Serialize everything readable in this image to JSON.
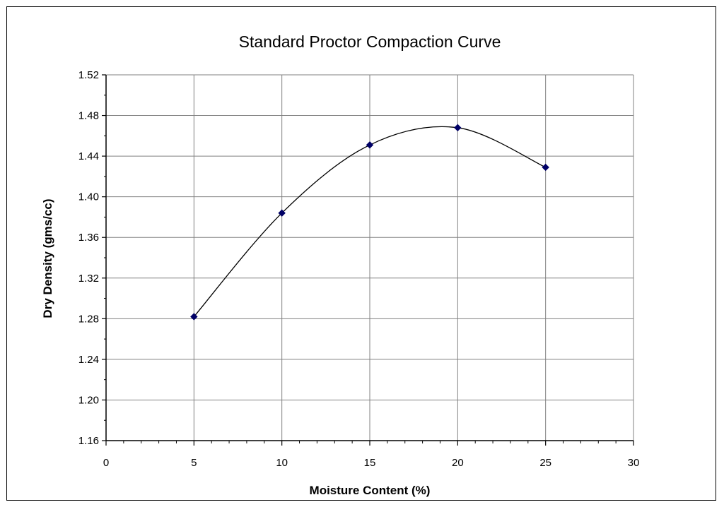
{
  "chart_data": {
    "type": "scatter",
    "title": "Standard Proctor Compaction Curve",
    "xlabel": "Moisture Content (%)",
    "ylabel": "Dry Density (gms/cc)",
    "xlim": [
      0,
      30
    ],
    "ylim": [
      1.16,
      1.52
    ],
    "x_ticks": [
      "0",
      "5",
      "10",
      "15",
      "20",
      "25",
      "30"
    ],
    "y_ticks": [
      "1.16",
      "1.20",
      "1.24",
      "1.28",
      "1.32",
      "1.36",
      "1.40",
      "1.44",
      "1.48",
      "1.52"
    ],
    "grid": true,
    "trendline": "polynomial",
    "series": [
      {
        "x": [
          5,
          10,
          15,
          20,
          25
        ],
        "y": [
          1.282,
          1.384,
          1.451,
          1.468,
          1.429
        ]
      }
    ],
    "colors": {
      "marker": "#000066",
      "line": "#000000",
      "grid": "#808080",
      "frame": "#000000"
    }
  }
}
